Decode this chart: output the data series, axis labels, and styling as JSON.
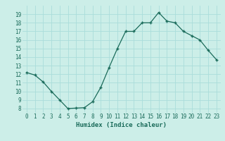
{
  "x": [
    0,
    1,
    2,
    3,
    4,
    5,
    6,
    7,
    8,
    9,
    10,
    11,
    12,
    13,
    14,
    15,
    16,
    17,
    18,
    19,
    20,
    21,
    22,
    23
  ],
  "y_approx": [
    12.2,
    11.9,
    11.1,
    10.0,
    9.0,
    8.0,
    8.05,
    8.1,
    8.8,
    10.5,
    12.8,
    15.0,
    17.0,
    17.0,
    18.0,
    18.0,
    19.2,
    18.2,
    18.0,
    17.0,
    16.5,
    16.0,
    14.8,
    13.7
  ],
  "line_color": "#1a6b5a",
  "marker": "+",
  "marker_size": 3.5,
  "marker_lw": 1.0,
  "bg_color": "#cceee8",
  "grid_color": "#aaddda",
  "xlabel": "Humidex (Indice chaleur)",
  "ylim_bottom": 7.5,
  "ylim_top": 20.0,
  "xlim_left": -0.5,
  "xlim_right": 23.5,
  "yticks": [
    8,
    9,
    10,
    11,
    12,
    13,
    14,
    15,
    16,
    17,
    18,
    19
  ],
  "xticks": [
    0,
    1,
    2,
    3,
    4,
    5,
    6,
    7,
    8,
    9,
    10,
    11,
    12,
    13,
    14,
    15,
    16,
    17,
    18,
    19,
    20,
    21,
    22,
    23
  ],
  "tick_color": "#1a6b5a",
  "label_color": "#1a6b5a",
  "tick_fontsize": 5.5,
  "xlabel_fontsize": 6.5
}
